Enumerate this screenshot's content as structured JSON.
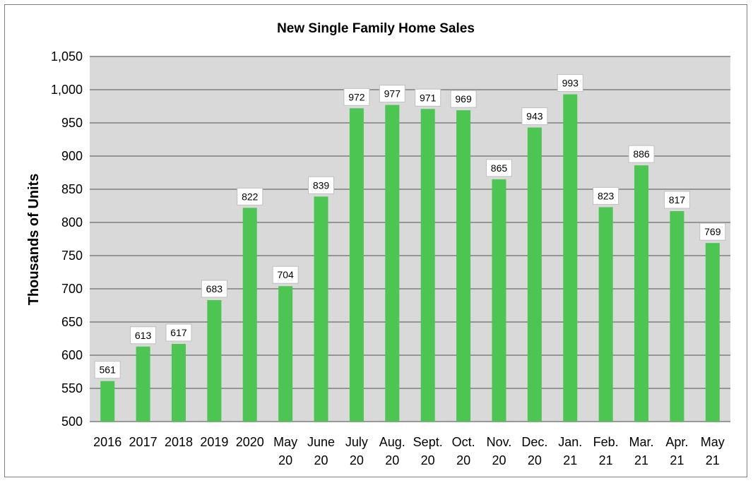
{
  "chart_data": {
    "type": "bar",
    "title": "New Single Family Home Sales",
    "xlabel": "",
    "ylabel": "Thousands of Units",
    "ylim": [
      500,
      1050
    ],
    "yticks": [
      "500",
      "550",
      "600",
      "650",
      "700",
      "750",
      "800",
      "850",
      "900",
      "950",
      "1,000",
      "1,050"
    ],
    "ytick_values": [
      500,
      550,
      600,
      650,
      700,
      750,
      800,
      850,
      900,
      950,
      1000,
      1050
    ],
    "categories": [
      [
        "2016"
      ],
      [
        "2017"
      ],
      [
        "2018"
      ],
      [
        "2019"
      ],
      [
        "2020"
      ],
      [
        "May",
        "20"
      ],
      [
        "June",
        "20"
      ],
      [
        "July",
        "20"
      ],
      [
        "Aug.",
        "20"
      ],
      [
        "Sept.",
        "20"
      ],
      [
        "Oct.",
        "20"
      ],
      [
        "Nov.",
        "20"
      ],
      [
        "Dec.",
        "20"
      ],
      [
        "Jan.",
        "21"
      ],
      [
        "Feb.",
        "21"
      ],
      [
        "Mar.",
        "21"
      ],
      [
        "Apr.",
        "21"
      ],
      [
        "May",
        "21"
      ]
    ],
    "values": [
      561,
      613,
      617,
      683,
      822,
      704,
      839,
      972,
      977,
      971,
      969,
      865,
      943,
      993,
      823,
      886,
      817,
      769
    ],
    "data_labels": true,
    "grid": "horizontal",
    "legend": "none",
    "colors": {
      "bar": "#4cc552",
      "plot_bg": "#d9d9d9",
      "grid": "#7f7f7f"
    }
  }
}
